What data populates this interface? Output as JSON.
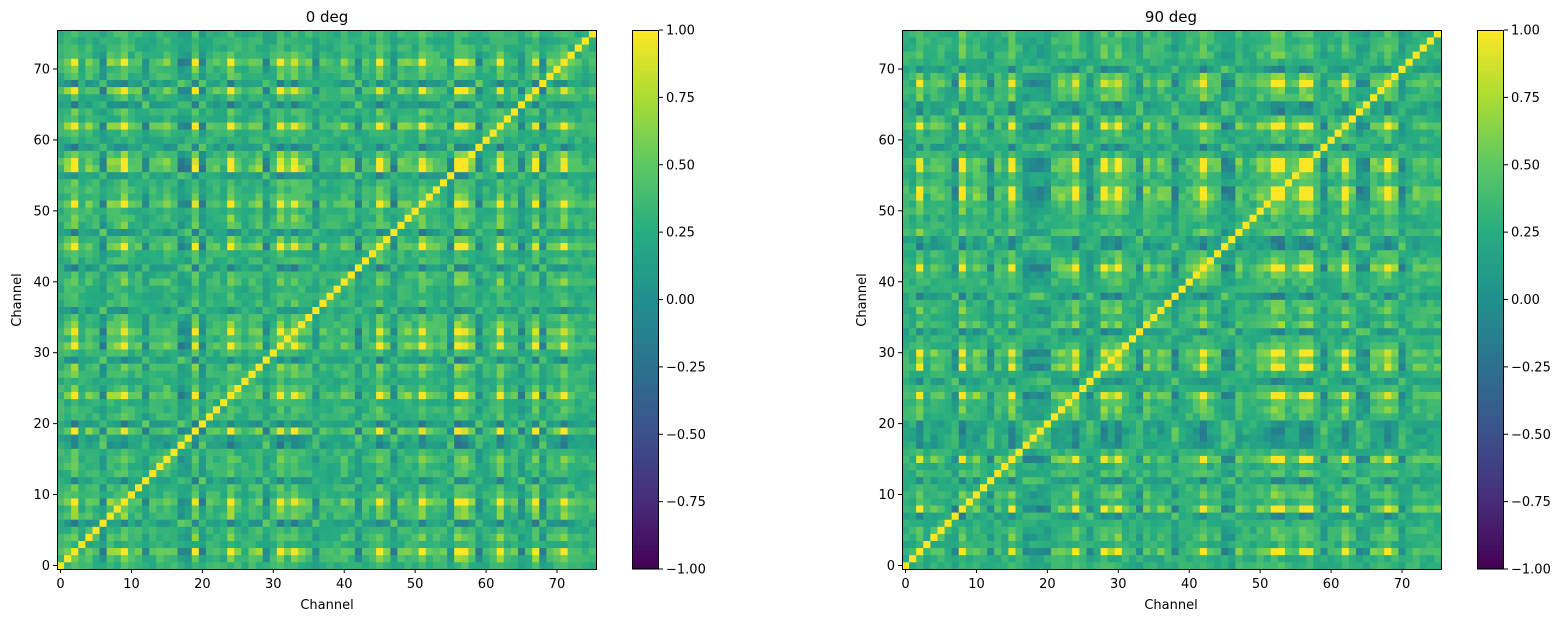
{
  "chart_data": [
    {
      "type": "heatmap",
      "title": "0 deg",
      "xlabel": "Channel",
      "ylabel": "Channel",
      "n": 76,
      "xlim": [
        -0.5,
        75.5
      ],
      "ylim": [
        -0.5,
        75.5
      ],
      "xticks": [
        0,
        10,
        20,
        30,
        40,
        50,
        60,
        70
      ],
      "yticks": [
        0,
        10,
        20,
        30,
        40,
        50,
        60,
        70
      ],
      "colorbar": {
        "range": [
          -1.0,
          1.0
        ],
        "ticks": [
          1.0,
          0.75,
          0.5,
          0.25,
          0.0,
          -0.25,
          -0.5,
          -0.75,
          -1.0
        ],
        "tick_labels": [
          "1.00",
          "0.75",
          "0.50",
          "0.25",
          "0.00",
          "−0.25",
          "−0.50",
          "−0.75",
          "−1.00"
        ]
      },
      "colormap": "viridis",
      "diagonal": 1.0,
      "low_channels": [
        6,
        12,
        17,
        18,
        20,
        29,
        36,
        42,
        47,
        55,
        59,
        65,
        68
      ],
      "high_channels": [
        2,
        9,
        19,
        24,
        31,
        33,
        45,
        51,
        56,
        57,
        62,
        67,
        71
      ],
      "seed": 7
    },
    {
      "type": "heatmap",
      "title": "90 deg",
      "xlabel": "Channel",
      "ylabel": "Channel",
      "n": 76,
      "xlim": [
        -0.5,
        75.5
      ],
      "ylim": [
        -0.5,
        75.5
      ],
      "xticks": [
        0,
        10,
        20,
        30,
        40,
        50,
        60,
        70
      ],
      "yticks": [
        0,
        10,
        20,
        30,
        40,
        50,
        60,
        70
      ],
      "colorbar": {
        "range": [
          -1.0,
          1.0
        ],
        "ticks": [
          1.0,
          0.75,
          0.5,
          0.25,
          0.0,
          -0.25,
          -0.5,
          -0.75,
          -1.0
        ],
        "tick_labels": [
          "1.00",
          "0.75",
          "0.50",
          "0.25",
          "0.00",
          "−0.25",
          "−0.50",
          "−0.75",
          "−1.00"
        ]
      },
      "colormap": "viridis",
      "diagonal": 1.0,
      "low_channels": [
        7,
        12,
        17,
        18,
        19,
        20,
        26,
        33,
        38,
        45,
        46,
        59,
        64,
        65,
        70
      ],
      "high_channels": [
        2,
        8,
        15,
        24,
        28,
        30,
        42,
        52,
        53,
        56,
        57,
        62,
        68
      ],
      "seed": 19
    }
  ]
}
